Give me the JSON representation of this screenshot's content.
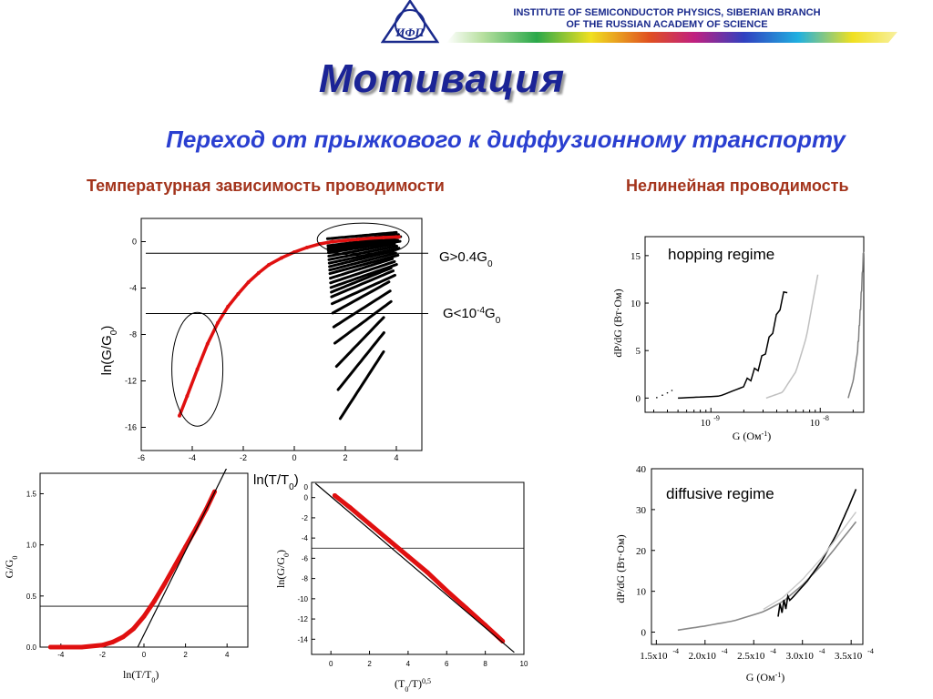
{
  "header": {
    "institute_line1": "INSTITUTE OF SEMICONDUCTOR PHYSICS, SIBERIAN BRANCH",
    "institute_line2": "OF THE RUSSIAN ACADEMY OF SCIENCE",
    "logo_text": "ИФП"
  },
  "slide": {
    "title": "Мотивация",
    "subtitle": "Переход от прыжкового к диффузионному транспорту",
    "left_heading": "Температурная зависимость проводимости",
    "right_heading": "Нелинейная проводимость"
  },
  "colors": {
    "red": "#e01010",
    "black": "#000000",
    "title": "#1b2496",
    "subtitle": "#2a3fd0",
    "heading": "#a3341c"
  },
  "chart_data": [
    {
      "id": "main",
      "type": "scatter",
      "ylabel_main": "ln(G/G",
      "ylabel_sub": "0",
      "ylabel_end": ")",
      "xlabel_main": "ln(T/T",
      "xlabel_sub": "0",
      "xlabel_end": ")",
      "xlim": [
        -6,
        5
      ],
      "ylim": [
        -18,
        2
      ],
      "xticks": [
        "-6",
        "-4",
        "-2",
        "0",
        "2",
        "4"
      ],
      "yticks": [
        "0",
        "-4",
        "-8",
        "-12",
        "-16"
      ],
      "hlines": [
        -1,
        -6.2
      ],
      "annot_high_pre": "G>0.4G",
      "annot_high_sub": "0",
      "annot_low_pre": "G<10",
      "annot_low_sup": "-4",
      "annot_low_mid": "G",
      "annot_low_sub": "0",
      "series": [
        {
          "color": "#e01010",
          "x": [
            -4.5,
            -4.2,
            -3.8,
            -3.4,
            -3.0,
            -2.6,
            -2.2,
            -1.8,
            -1.4,
            -1.0,
            -0.5,
            0.0,
            0.5,
            1.0,
            1.5,
            2.0,
            2.5,
            3.0,
            3.5,
            4.0,
            4.1
          ],
          "y": [
            -15.0,
            -13.3,
            -11.0,
            -8.8,
            -7.0,
            -5.6,
            -4.5,
            -3.5,
            -2.7,
            -2.0,
            -1.4,
            -0.9,
            -0.5,
            -0.2,
            0.0,
            0.1,
            0.2,
            0.3,
            0.35,
            0.4,
            0.4
          ]
        }
      ],
      "black_curve_offsets": [
        0.0,
        0.3,
        0.6,
        0.8,
        1.0,
        1.2,
        1.5,
        1.8,
        2.1,
        2.4,
        2.7,
        3.0,
        3.4,
        3.8,
        4.2,
        4.6,
        5.0,
        5.6,
        6.4,
        7.6,
        9.0,
        11.0,
        13.0,
        15.5
      ],
      "ellipses": [
        {
          "cx": -3.8,
          "cy": -11.0,
          "rx": 1.0,
          "ry": 4.9
        },
        {
          "cx": 2.7,
          "cy": 0.2,
          "rx": 1.8,
          "ry": 1.4
        }
      ]
    },
    {
      "id": "bottom-left",
      "type": "line",
      "ylabel_main": "G/G",
      "ylabel_sub": "0",
      "xlabel_main": "ln(T/T",
      "xlabel_sub": "0",
      "xlabel_end": ")",
      "xlim": [
        -5,
        5
      ],
      "ylim": [
        0,
        1.7
      ],
      "xticks": [
        "-4",
        "-2",
        "0",
        "2",
        "4"
      ],
      "yticks": [
        "0.0",
        "0.5",
        "1.0",
        "1.5"
      ],
      "hline": 0.4,
      "x": [
        -4.5,
        -3.0,
        -2.0,
        -1.5,
        -1.0,
        -0.5,
        0.0,
        0.5,
        1.0,
        1.5,
        2.0,
        2.5,
        3.0,
        3.4
      ],
      "y": [
        0.0,
        0.0,
        0.02,
        0.05,
        0.1,
        0.18,
        0.3,
        0.45,
        0.62,
        0.8,
        0.98,
        1.16,
        1.35,
        1.52
      ]
    },
    {
      "id": "bottom-middle",
      "type": "line",
      "ylabel_main": "ln(G/G",
      "ylabel_sub": "0",
      "ylabel_end": ")",
      "xlabel_main": "(T",
      "xlabel_sub": "0",
      "xlabel_mid": "/T)",
      "xlabel_sup": "0,5",
      "xlim": [
        -1,
        10
      ],
      "ylim": [
        -15.5,
        1.5
      ],
      "xticks": [
        "0",
        "2",
        "4",
        "6",
        "8",
        "10"
      ],
      "yticks": [
        "0",
        "-2",
        "-4",
        "-6",
        "-8",
        "-10",
        "-12",
        "-14"
      ],
      "yticks_extra": "0",
      "hline": -5,
      "x": [
        0.2,
        1.0,
        2.0,
        3.0,
        4.0,
        5.0,
        6.0,
        7.0,
        8.0,
        8.9
      ],
      "y": [
        0.2,
        -1.0,
        -2.6,
        -4.2,
        -5.8,
        -7.4,
        -9.2,
        -10.9,
        -12.6,
        -14.2
      ]
    },
    {
      "id": "hopping",
      "type": "line",
      "label": "hopping regime",
      "ylabel": "dP/dG (Вт·Ом)",
      "xlabel_main": "G (Ом",
      "xlabel_sup": "-1",
      "xlabel_end": ")",
      "xscale": "log",
      "xlim": [
        2.5e-10,
        2.5e-08
      ],
      "ylim": [
        -1.5,
        17
      ],
      "xticks_base": [
        "10",
        "10"
      ],
      "xticks_exp": [
        "-9",
        "-8"
      ],
      "xtick_values": [
        1e-09,
        1e-08
      ],
      "yticks": [
        "0",
        "5",
        "10",
        "15"
      ],
      "series": [
        {
          "color": "#000000",
          "x": [
            5e-10,
            1.2e-09,
            2e-09,
            2.8e-09,
            3.4e-09,
            4e-09,
            4.5e-09,
            5e-09
          ],
          "y": [
            0,
            0.2,
            1.2,
            3.5,
            6,
            8.5,
            10.5,
            11.5
          ]
        },
        {
          "color": "#c0c0c0",
          "x": [
            3.2e-09,
            4.5e-09,
            6e-09,
            7.5e-09,
            8.5e-09,
            9.5e-09
          ],
          "y": [
            0,
            0.6,
            2.8,
            6.5,
            10,
            13
          ]
        },
        {
          "color": "#808080",
          "x": [
            1.8e-08,
            2e-08,
            2.2e-08,
            2.35e-08,
            2.45e-08,
            2.5e-08
          ],
          "y": [
            0,
            1.8,
            5,
            10,
            14,
            15.8
          ]
        }
      ]
    },
    {
      "id": "diffusive",
      "type": "line",
      "label": "diffusive regime",
      "ylabel": "dP/dG (Вт·Ом)",
      "xlabel_main": "G (Ом",
      "xlabel_sup": "-1",
      "xlabel_end": ")",
      "xlim": [
        0.000145,
        0.000362
      ],
      "ylim": [
        -3,
        40
      ],
      "xticks_values": [
        0.00015,
        0.0002,
        0.00025,
        0.0003,
        0.00035
      ],
      "xticks_base": [
        "1.5x10",
        "2.0x10",
        "2.5x10",
        "3.0x10",
        "3.5x10"
      ],
      "xticks_exp": [
        "-4",
        "-4",
        "-4",
        "-4",
        "-4"
      ],
      "yticks": [
        "0",
        "10",
        "20",
        "30",
        "40"
      ],
      "series": [
        {
          "color": "#888888",
          "x": [
            0.000172,
            0.0002,
            0.00023,
            0.00026,
            0.00028,
            0.0003,
            0.00032,
            0.00034,
            0.000355
          ],
          "y": [
            0.5,
            1.5,
            2.8,
            5,
            7.5,
            11.5,
            16.5,
            22.5,
            27
          ]
        },
        {
          "color": "#000000",
          "x": [
            0.000275,
            0.00029,
            0.000305,
            0.00032,
            0.000335,
            0.000348,
            0.000355
          ],
          "y": [
            5,
            8.5,
            12.5,
            17.5,
            24,
            31,
            35
          ]
        }
      ]
    }
  ]
}
